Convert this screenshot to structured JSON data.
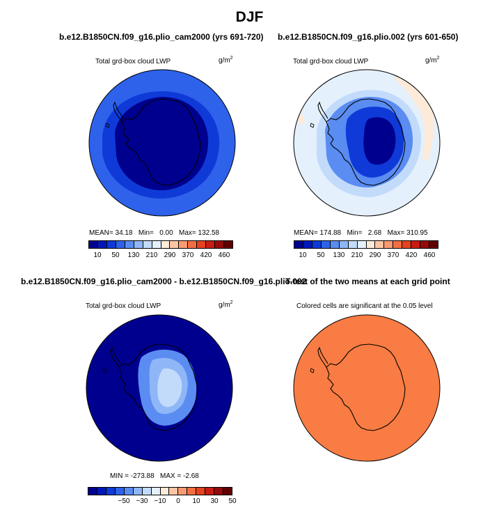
{
  "figure": {
    "title": "DJF"
  },
  "panels": [
    {
      "id": "p1",
      "case_title": "b.e12.B1850CN.f09_g16.plio_cam2000 (yrs 691-720)",
      "variable": "Total grd-box cloud LWP",
      "units_base": "g/m",
      "units_exp": "2",
      "stats": {
        "mean_label": "MEAN=",
        "mean": "34.18",
        "min_label": "Min=",
        "min": "0.00",
        "max_label": "Max=",
        "max": "132.58"
      }
    },
    {
      "id": "p2",
      "case_title": "b.e12.B1850CN.f09_g16.plio.002 (yrs 601-650)",
      "variable": "Total grd-box cloud LWP",
      "units_base": "g/m",
      "units_exp": "2",
      "stats": {
        "mean_label": "MEAN=",
        "mean": "174.88",
        "min_label": "Min=",
        "min": "2.68",
        "max_label": "Max=",
        "max": "310.95"
      }
    },
    {
      "id": "p3",
      "case_title": "b.e12.B1850CN.f09_g16.plio_cam2000 - b.e12.B1850CN.f09_g16.plio.002",
      "variable": "Total grd-box cloud LWP",
      "units_base": "g/m",
      "units_exp": "2",
      "stats": {
        "min_label": "MIN =",
        "min": "-273.88",
        "max_label": "MAX =",
        "max": "-2.68"
      }
    },
    {
      "id": "p4",
      "case_title": "T-test of the two means at each grid point",
      "variable": "Colored cells are significant at the 0.05 level"
    }
  ],
  "chart_data": [
    {
      "type": "heatmap",
      "projection": "south-polar-stereographic",
      "title": "b.e12.B1850CN.f09_g16.plio_cam2000 (yrs 691-720)",
      "variable": "Total grd-box cloud LWP",
      "units": "g/m^2",
      "levels": [
        10,
        50,
        130,
        210,
        290,
        370,
        420,
        460
      ],
      "level_tick_labels": [
        "10",
        "50",
        "130",
        "210",
        "290",
        "370",
        "420",
        "460"
      ],
      "colors": [
        "#00008f",
        "#0018b8",
        "#0f3ad8",
        "#2e62ea",
        "#5a8cf2",
        "#8fb6f7",
        "#c3dbfb",
        "#e4f0fc",
        "#fdead8",
        "#fcc6a4",
        "#f89a72",
        "#f36e43",
        "#e6421f",
        "#c81c13",
        "#960a0a",
        "#600000"
      ],
      "rings": [
        {
          "from": "outer",
          "bin_color": "#2e62ea",
          "approx_value": "50-130"
        },
        {
          "from": "coast",
          "bin_color": "#0f3ad8",
          "approx_value": "10-50"
        },
        {
          "from": "continent",
          "bin_color": "#00008f",
          "approx_value": "<10"
        }
      ],
      "stats": {
        "mean": 34.18,
        "min": 0.0,
        "max": 132.58
      }
    },
    {
      "type": "heatmap",
      "projection": "south-polar-stereographic",
      "title": "b.e12.B1850CN.f09_g16.plio.002 (yrs 601-650)",
      "variable": "Total grd-box cloud LWP",
      "units": "g/m^2",
      "levels": [
        10,
        50,
        130,
        210,
        290,
        370,
        420,
        460
      ],
      "level_tick_labels": [
        "10",
        "50",
        "130",
        "210",
        "290",
        "370",
        "420",
        "460"
      ],
      "colors": [
        "#00008f",
        "#0018b8",
        "#0f3ad8",
        "#2e62ea",
        "#5a8cf2",
        "#8fb6f7",
        "#c3dbfb",
        "#e4f0fc",
        "#fdead8",
        "#fcc6a4",
        "#f89a72",
        "#f36e43",
        "#e6421f",
        "#c81c13",
        "#960a0a",
        "#600000"
      ],
      "rings": [
        {
          "from": "outer",
          "bin_color": "#e4f0fc",
          "approx_value": "210-290"
        },
        {
          "from": "ocean",
          "bin_color": "#c3dbfb",
          "approx_value": "130-210"
        },
        {
          "from": "coast",
          "bin_color": "#5a8cf2",
          "approx_value": "50-130"
        },
        {
          "from": "interior",
          "bin_color": "#0f3ad8",
          "approx_value": "10-50"
        },
        {
          "from": "plateau",
          "bin_color": "#00008f",
          "approx_value": "<10"
        }
      ],
      "stats": {
        "mean": 174.88,
        "min": 2.68,
        "max": 310.95
      }
    },
    {
      "type": "heatmap",
      "projection": "south-polar-stereographic",
      "title": "b.e12.B1850CN.f09_g16.plio_cam2000 - b.e12.B1850CN.f09_g16.plio.002",
      "variable": "Total grd-box cloud LWP",
      "units": "g/m^2",
      "levels": [
        -50,
        -30,
        -10,
        0,
        10,
        30,
        50
      ],
      "level_tick_labels": [
        "−50",
        "−30",
        "−10",
        "0",
        "10",
        "30",
        "50"
      ],
      "colors": [
        "#00008f",
        "#0018b8",
        "#0f3ad8",
        "#2e62ea",
        "#5a8cf2",
        "#8fb6f7",
        "#c3dbfb",
        "#e4f0fc",
        "#fdead8",
        "#fcc6a4",
        "#f89a72",
        "#f36e43",
        "#e6421f",
        "#c81c13",
        "#960a0a",
        "#600000"
      ],
      "rings": [
        {
          "from": "ocean",
          "bin_color": "#00008f",
          "approx_value": "<-50"
        },
        {
          "from": "continent",
          "bin_color": "#5a8cf2",
          "approx_value": "-30 to -10"
        },
        {
          "from": "plateau",
          "bin_color": "#c3dbfb",
          "approx_value": "-10 to 0"
        }
      ],
      "stats": {
        "min": -273.88,
        "max": -2.68
      }
    },
    {
      "type": "heatmap",
      "projection": "south-polar-stereographic",
      "title": "T-test of the two means at each grid point",
      "subtitle": "Colored cells are significant at the 0.05 level",
      "rings": [
        {
          "from": "all",
          "bin_color": "#f87c43",
          "approx_value": "significant"
        }
      ]
    }
  ]
}
